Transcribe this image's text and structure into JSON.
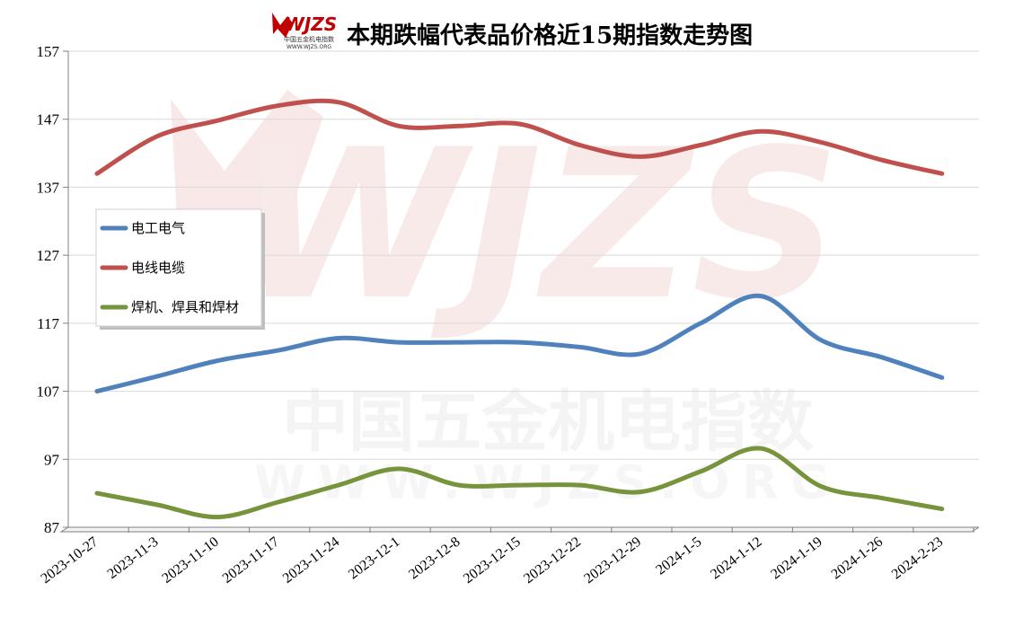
{
  "header": {
    "logo_text": "WJZS",
    "logo_sub": "中国五金机电指数",
    "logo_url": "WWW.WJZS.ORG"
  },
  "watermark": {
    "text_main": "中国五金机电指数",
    "text_url": "WWW.WJZS.ORG"
  },
  "colors": {
    "series1": "#4F81BD",
    "series2": "#C0504D",
    "series3": "#77933C",
    "grid": "#d9d9d9",
    "watermark": "#f2dede"
  },
  "chart_data": {
    "type": "line",
    "title": "本期跌幅代表品价格近15期指数走势图",
    "xlabel": "",
    "ylabel": "",
    "ylim": [
      87,
      157
    ],
    "yticks": [
      87,
      97,
      107,
      117,
      127,
      137,
      147,
      157
    ],
    "grid": true,
    "legend_position": "left-middle",
    "categories": [
      "2023-10-27",
      "2023-11-3",
      "2023-11-10",
      "2023-11-17",
      "2023-11-24",
      "2023-12-1",
      "2023-12-8",
      "2023-12-15",
      "2023-12-22",
      "2023-12-29",
      "2024-1-5",
      "2024-1-12",
      "2024-1-19",
      "2024-1-26",
      "2024-2-23"
    ],
    "series": [
      {
        "name": "电工电气",
        "values": [
          107.0,
          109.2,
          111.5,
          113.0,
          114.8,
          114.2,
          114.2,
          114.2,
          113.5,
          112.5,
          117.0,
          121.0,
          114.5,
          112.0,
          109.0
        ]
      },
      {
        "name": "电线电缆",
        "values": [
          139.0,
          144.5,
          146.8,
          149.0,
          149.5,
          146.0,
          146.0,
          146.3,
          143.2,
          141.5,
          143.2,
          145.2,
          143.6,
          141.0,
          139.0
        ]
      },
      {
        "name": "焊机、焊具和焊材",
        "values": [
          92.0,
          90.3,
          88.5,
          90.7,
          93.2,
          95.6,
          93.2,
          93.2,
          93.2,
          92.2,
          95.2,
          98.6,
          93.0,
          91.3,
          89.7
        ]
      }
    ]
  }
}
